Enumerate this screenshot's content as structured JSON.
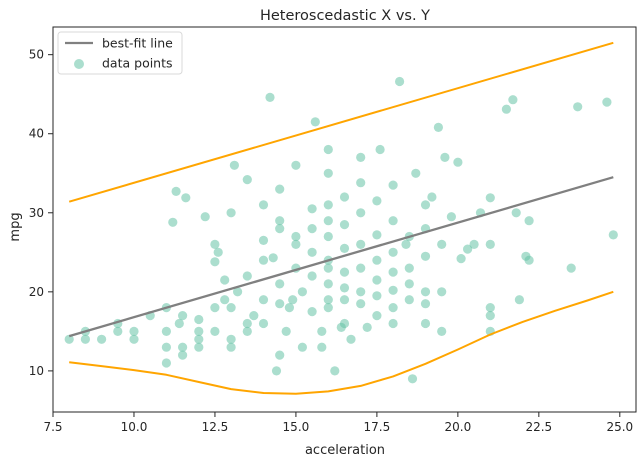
{
  "chart_data": {
    "type": "scatter",
    "title": "Heteroscedastic X vs. Y",
    "xlabel": "acceleration",
    "ylabel": "mpg",
    "xlim": [
      7.5,
      25.5
    ],
    "ylim": [
      4.8,
      53.5
    ],
    "x_ticks": [
      7.5,
      10.0,
      12.5,
      15.0,
      17.5,
      20.0,
      22.5,
      25.0
    ],
    "x_tick_labels": [
      "7.5",
      "10.0",
      "12.5",
      "15.0",
      "17.5",
      "20.0",
      "22.5",
      "25.0"
    ],
    "y_ticks": [
      10,
      20,
      30,
      40,
      50
    ],
    "y_tick_labels": [
      "10",
      "20",
      "30",
      "40",
      "50"
    ],
    "grid": false,
    "legend": {
      "position": "top-left",
      "entries": [
        {
          "label": "best-fit line",
          "kind": "line",
          "color": "#808080"
        },
        {
          "label": "data points",
          "kind": "marker",
          "color": "#66c2a5"
        }
      ]
    },
    "colors": {
      "points": "#66c2a5",
      "fit_line": "#808080",
      "bounds": "#ffa500"
    },
    "series": [
      {
        "name": "best-fit line",
        "kind": "line",
        "x": [
          8.0,
          24.8
        ],
        "y": [
          14.4,
          34.5
        ]
      },
      {
        "kind": "line",
        "x": [
          8.0,
          24.8
        ],
        "y": [
          31.4,
          51.5
        ]
      },
      {
        "kind": "line",
        "x": [
          8.0,
          9.0,
          10.0,
          11.0,
          12.0,
          13.0,
          14.0,
          15.0,
          16.0,
          17.0,
          18.0,
          19.0,
          20.0,
          21.0,
          22.0,
          23.0,
          24.0,
          24.8
        ],
        "y": [
          11.1,
          10.6,
          10.1,
          9.5,
          8.6,
          7.7,
          7.2,
          7.1,
          7.4,
          8.1,
          9.3,
          10.9,
          12.7,
          14.6,
          16.2,
          17.6,
          18.9,
          20.0
        ]
      },
      {
        "name": "data points",
        "kind": "scatter",
        "points": [
          [
            8.0,
            14.0
          ],
          [
            8.5,
            15.0
          ],
          [
            8.5,
            14.0
          ],
          [
            9.0,
            14.0
          ],
          [
            9.5,
            15.0
          ],
          [
            9.5,
            16.0
          ],
          [
            10.0,
            14.0
          ],
          [
            10.0,
            15.0
          ],
          [
            10.5,
            17.0
          ],
          [
            11.0,
            18.0
          ],
          [
            11.0,
            15.0
          ],
          [
            11.0,
            13.0
          ],
          [
            11.0,
            11.0
          ],
          [
            11.2,
            28.8
          ],
          [
            11.3,
            32.7
          ],
          [
            11.4,
            16.0
          ],
          [
            11.5,
            13.0
          ],
          [
            11.5,
            17.0
          ],
          [
            11.5,
            12.0
          ],
          [
            11.6,
            31.9
          ],
          [
            12.0,
            15.0
          ],
          [
            12.0,
            14.0
          ],
          [
            12.0,
            13.0
          ],
          [
            12.0,
            16.5
          ],
          [
            12.2,
            29.5
          ],
          [
            12.5,
            18.0
          ],
          [
            12.5,
            15.0
          ],
          [
            12.5,
            26.0
          ],
          [
            12.5,
            23.8
          ],
          [
            12.6,
            25.0
          ],
          [
            12.8,
            21.5
          ],
          [
            12.8,
            19.0
          ],
          [
            13.0,
            14.0
          ],
          [
            13.0,
            13.0
          ],
          [
            13.0,
            18.0
          ],
          [
            13.0,
            30.0
          ],
          [
            13.1,
            36.0
          ],
          [
            13.2,
            20.0
          ],
          [
            13.5,
            16.0
          ],
          [
            13.5,
            22.0
          ],
          [
            13.5,
            34.2
          ],
          [
            13.5,
            15.0
          ],
          [
            13.7,
            17.0
          ],
          [
            14.0,
            19.0
          ],
          [
            14.0,
            16.0
          ],
          [
            14.0,
            24.0
          ],
          [
            14.0,
            26.5
          ],
          [
            14.0,
            31.0
          ],
          [
            14.2,
            44.6
          ],
          [
            14.3,
            24.3
          ],
          [
            14.4,
            10.0
          ],
          [
            14.5,
            12.0
          ],
          [
            14.5,
            18.5
          ],
          [
            14.5,
            21.0
          ],
          [
            14.5,
            28.0
          ],
          [
            14.5,
            29.0
          ],
          [
            14.5,
            33.0
          ],
          [
            14.7,
            15.0
          ],
          [
            14.8,
            18.0
          ],
          [
            14.9,
            19.0
          ],
          [
            15.0,
            23.0
          ],
          [
            15.0,
            26.0
          ],
          [
            15.0,
            27.0
          ],
          [
            15.0,
            36.0
          ],
          [
            15.2,
            20.0
          ],
          [
            15.2,
            13.0
          ],
          [
            15.5,
            22.0
          ],
          [
            15.5,
            25.0
          ],
          [
            15.5,
            28.0
          ],
          [
            15.5,
            30.5
          ],
          [
            15.5,
            17.5
          ],
          [
            15.6,
            41.5
          ],
          [
            15.8,
            13.0
          ],
          [
            15.8,
            15.0
          ],
          [
            16.0,
            18.0
          ],
          [
            16.0,
            19.0
          ],
          [
            16.0,
            21.0
          ],
          [
            16.0,
            23.0
          ],
          [
            16.0,
            24.0
          ],
          [
            16.0,
            27.0
          ],
          [
            16.0,
            29.0
          ],
          [
            16.0,
            31.0
          ],
          [
            16.0,
            35.0
          ],
          [
            16.0,
            38.0
          ],
          [
            16.2,
            10.0
          ],
          [
            16.4,
            15.5
          ],
          [
            16.5,
            16.0
          ],
          [
            16.5,
            19.0
          ],
          [
            16.5,
            20.5
          ],
          [
            16.5,
            22.5
          ],
          [
            16.5,
            25.5
          ],
          [
            16.5,
            28.5
          ],
          [
            16.5,
            32.0
          ],
          [
            16.7,
            14.0
          ],
          [
            17.0,
            18.5
          ],
          [
            17.0,
            20.0
          ],
          [
            17.0,
            23.0
          ],
          [
            17.0,
            26.0
          ],
          [
            17.0,
            30.0
          ],
          [
            17.0,
            33.8
          ],
          [
            17.0,
            37.0
          ],
          [
            17.2,
            15.5
          ],
          [
            17.5,
            17.0
          ],
          [
            17.5,
            19.5
          ],
          [
            17.5,
            21.5
          ],
          [
            17.5,
            24.0
          ],
          [
            17.5,
            27.2
          ],
          [
            17.5,
            31.5
          ],
          [
            17.6,
            38.0
          ],
          [
            18.0,
            16.0
          ],
          [
            18.0,
            18.0
          ],
          [
            18.0,
            20.2
          ],
          [
            18.0,
            22.5
          ],
          [
            18.0,
            25.0
          ],
          [
            18.0,
            29.0
          ],
          [
            18.0,
            33.5
          ],
          [
            18.2,
            46.6
          ],
          [
            18.4,
            26.0
          ],
          [
            18.5,
            19.0
          ],
          [
            18.5,
            21.0
          ],
          [
            18.5,
            23.0
          ],
          [
            18.5,
            27.0
          ],
          [
            18.6,
            9.0
          ],
          [
            18.7,
            35.0
          ],
          [
            19.0,
            16.0
          ],
          [
            19.0,
            18.5
          ],
          [
            19.0,
            20.0
          ],
          [
            19.0,
            24.5
          ],
          [
            19.0,
            28.0
          ],
          [
            19.0,
            31.0
          ],
          [
            19.2,
            32.0
          ],
          [
            19.4,
            40.8
          ],
          [
            19.5,
            15.0
          ],
          [
            19.5,
            20.0
          ],
          [
            19.5,
            26.0
          ],
          [
            19.6,
            37.0
          ],
          [
            19.8,
            29.5
          ],
          [
            20.0,
            36.4
          ],
          [
            20.1,
            24.2
          ],
          [
            20.3,
            25.4
          ],
          [
            20.5,
            26.0
          ],
          [
            20.7,
            30.0
          ],
          [
            21.0,
            15.0
          ],
          [
            21.0,
            17.0
          ],
          [
            21.0,
            18.0
          ],
          [
            21.0,
            26.0
          ],
          [
            21.0,
            31.9
          ],
          [
            21.5,
            43.1
          ],
          [
            21.7,
            44.3
          ],
          [
            21.8,
            30.0
          ],
          [
            21.9,
            19.0
          ],
          [
            22.1,
            24.5
          ],
          [
            22.2,
            24.0
          ],
          [
            22.2,
            29.0
          ],
          [
            23.5,
            23.0
          ],
          [
            23.7,
            43.4
          ],
          [
            24.6,
            44.0
          ],
          [
            24.8,
            27.2
          ]
        ]
      }
    ]
  }
}
